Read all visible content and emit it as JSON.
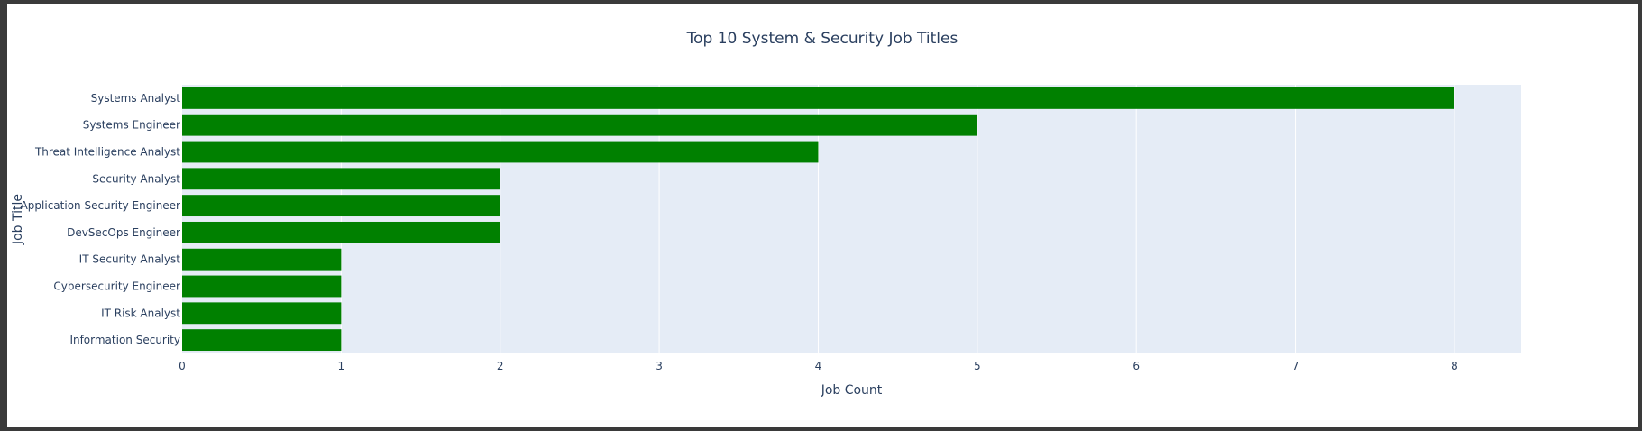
{
  "chart_data": {
    "type": "bar",
    "orientation": "horizontal",
    "title": "Top 10 System & Security Job Titles",
    "xlabel": "Job Count",
    "ylabel": "Job Title",
    "categories": [
      "Systems Analyst",
      "Systems Engineer",
      "Threat Intelligence Analyst",
      "Security Analyst",
      "Application Security Engineer",
      "DevSecOps Engineer",
      "IT Security Analyst",
      "Cybersecurity Engineer",
      "IT Risk Analyst",
      "Information Security"
    ],
    "values": [
      8,
      5,
      4,
      2,
      2,
      2,
      1,
      1,
      1,
      1
    ],
    "xlim": [
      0,
      8.42
    ],
    "xticks": [
      0,
      1,
      2,
      3,
      4,
      5,
      6,
      7,
      8
    ],
    "grid": true,
    "bar_color": "#008000",
    "plot_bg_color": "#e5ecf6",
    "text_color": "#2a3f5f"
  }
}
